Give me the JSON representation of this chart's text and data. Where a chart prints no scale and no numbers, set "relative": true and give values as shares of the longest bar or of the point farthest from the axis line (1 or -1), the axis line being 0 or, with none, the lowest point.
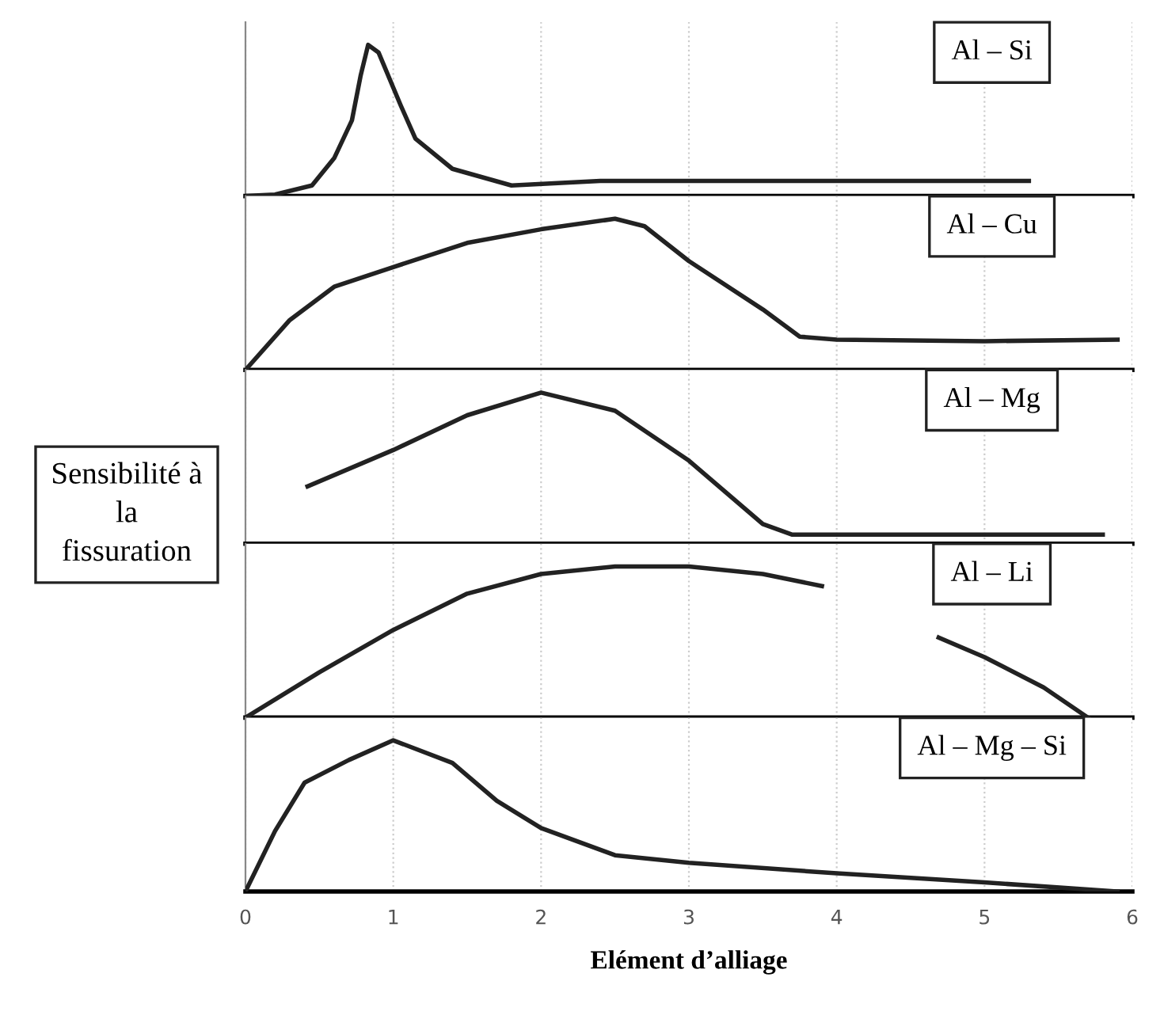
{
  "chart_data": [
    {
      "type": "line",
      "relative": true,
      "xlim": [
        0,
        6
      ],
      "xticks": [
        0,
        1,
        2,
        3,
        4,
        5,
        6
      ],
      "grid": "x",
      "tick_labels": false,
      "series": [
        {
          "name": "Al – Si",
          "color": "#222222",
          "x": [
            0,
            0.2,
            0.45,
            0.6,
            0.72,
            0.78,
            0.83,
            0.9,
            1.05,
            1.15,
            1.4,
            1.8,
            2.4,
            3,
            5.3
          ],
          "values": [
            0,
            0.01,
            0.07,
            0.25,
            0.5,
            0.8,
            1.0,
            0.95,
            0.6,
            0.38,
            0.18,
            0.07,
            0.1,
            0.1,
            0.1
          ]
        }
      ]
    },
    {
      "type": "line",
      "relative": true,
      "xlim": [
        0,
        6
      ],
      "xticks": [
        0,
        1,
        2,
        3,
        4,
        5,
        6
      ],
      "grid": "x",
      "tick_labels": false,
      "series": [
        {
          "name": "Al – Cu",
          "color": "#222222",
          "x": [
            0,
            0.3,
            0.6,
            1,
            1.5,
            2,
            2.5,
            2.7,
            3,
            3.5,
            3.75,
            4,
            5,
            5.9
          ],
          "values": [
            0,
            0.33,
            0.55,
            0.68,
            0.84,
            0.93,
            1.0,
            0.95,
            0.72,
            0.4,
            0.22,
            0.2,
            0.19,
            0.2
          ]
        }
      ]
    },
    {
      "type": "line",
      "relative": true,
      "xlim": [
        0,
        6
      ],
      "xticks": [
        0,
        1,
        2,
        3,
        4,
        5,
        6
      ],
      "grid": "x",
      "tick_labels": false,
      "ylabel": "Sensibilité à\nla\nfissuration",
      "series": [
        {
          "name": "Al – Mg",
          "color": "#222222",
          "x": [
            0.42,
            1,
            1.5,
            2,
            2.5,
            3,
            3.5,
            3.7,
            5.8
          ],
          "values": [
            0.38,
            0.62,
            0.85,
            1.0,
            0.88,
            0.55,
            0.13,
            0.06,
            0.06
          ]
        }
      ]
    },
    {
      "type": "line",
      "relative": true,
      "xlim": [
        0,
        6
      ],
      "xticks": [
        0,
        1,
        2,
        3,
        4,
        5,
        6
      ],
      "grid": "x",
      "tick_labels": false,
      "series": [
        {
          "name": "Al – Li",
          "color": "#222222",
          "x": [
            0,
            0.5,
            1,
            1.5,
            2,
            2.5,
            3,
            3.5,
            3.9,
            4.3,
            4.69,
            5,
            5.4,
            5.7
          ],
          "values": [
            0,
            0.3,
            0.58,
            0.82,
            0.95,
            1.0,
            1.0,
            0.95,
            0.87,
            null,
            0.53,
            0.4,
            0.2,
            0
          ]
        }
      ]
    },
    {
      "type": "line",
      "relative": true,
      "xlim": [
        0,
        6
      ],
      "xticks": [
        0,
        1,
        2,
        3,
        4,
        5,
        6
      ],
      "grid": "x",
      "tick_labels": "x",
      "xlabel": "Elément d’alliage",
      "series": [
        {
          "name": "Al – Mg – Si",
          "color": "#222222",
          "x": [
            0,
            0.2,
            0.4,
            0.7,
            1,
            1.4,
            1.7,
            2,
            2.5,
            3,
            4,
            5,
            5.9
          ],
          "values": [
            0,
            0.4,
            0.72,
            0.87,
            1.0,
            0.85,
            0.6,
            0.42,
            0.24,
            0.19,
            0.12,
            0.06,
            0
          ]
        }
      ]
    }
  ]
}
